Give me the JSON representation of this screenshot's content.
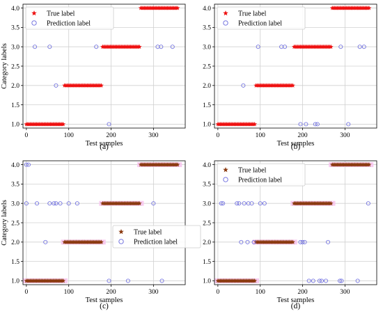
{
  "chart_data": [
    {
      "type": "scatter",
      "panel_label": "(a)",
      "xlabel": "Test samples",
      "ylabel": "Category labels",
      "xlim": [
        -8,
        375
      ],
      "ylim": [
        0.9,
        4.1
      ],
      "xticks": [
        0,
        100,
        200,
        300
      ],
      "yticks": [
        1.0,
        1.5,
        2.0,
        2.5,
        3.0,
        3.5,
        4.0
      ],
      "grid": true,
      "legend": {
        "position": "top-left",
        "entries": [
          "True label",
          "Prediction label"
        ]
      },
      "series": [
        {
          "name": "True label",
          "marker": "star",
          "color": "#ee1111",
          "segments": [
            {
              "x_start": 0,
              "x_end": 89,
              "y": 1.0
            },
            {
              "x_start": 90,
              "x_end": 179,
              "y": 2.0
            },
            {
              "x_start": 180,
              "x_end": 269,
              "y": 3.0
            },
            {
              "x_start": 270,
              "x_end": 359,
              "y": 4.0
            }
          ]
        },
        {
          "name": "Prediction label",
          "marker": "circle",
          "color": "#6666dd",
          "points": [
            [
              20,
              3.0
            ],
            [
              55,
              3.0
            ],
            [
              70,
              2.0
            ],
            [
              165,
              3.0
            ],
            [
              195,
              1.0
            ],
            [
              310,
              3.0
            ],
            [
              318,
              3.0
            ],
            [
              345,
              3.0
            ]
          ]
        }
      ]
    },
    {
      "type": "scatter",
      "panel_label": "(b)",
      "xlabel": "Test samples",
      "ylabel": "",
      "xlim": [
        -8,
        375
      ],
      "ylim": [
        0.9,
        4.1
      ],
      "xticks": [
        0,
        100,
        200,
        300
      ],
      "yticks": [
        1.0,
        1.5,
        2.0,
        2.5,
        3.0,
        3.5,
        4.0
      ],
      "grid": true,
      "legend": {
        "position": "top-left",
        "entries": [
          "True label",
          "Prediction label"
        ]
      },
      "series": [
        {
          "name": "True label",
          "marker": "star",
          "color": "#ee1111",
          "segments": [
            {
              "x_start": 0,
              "x_end": 89,
              "y": 1.0
            },
            {
              "x_start": 90,
              "x_end": 179,
              "y": 2.0
            },
            {
              "x_start": 180,
              "x_end": 269,
              "y": 3.0
            },
            {
              "x_start": 270,
              "x_end": 359,
              "y": 4.0
            }
          ]
        },
        {
          "name": "Prediction label",
          "marker": "circle",
          "color": "#6666dd",
          "points": [
            [
              60,
              2.0
            ],
            [
              95,
              3.0
            ],
            [
              150,
              3.0
            ],
            [
              158,
              3.0
            ],
            [
              195,
              1.0
            ],
            [
              208,
              1.0
            ],
            [
              230,
              1.0
            ],
            [
              235,
              1.0
            ],
            [
              290,
              3.0
            ],
            [
              308,
              1.0
            ],
            [
              335,
              3.0
            ],
            [
              345,
              3.0
            ]
          ]
        }
      ]
    },
    {
      "type": "scatter",
      "panel_label": "(c)",
      "xlabel": "Test samples",
      "ylabel": "Category labels",
      "xlim": [
        -8,
        375
      ],
      "ylim": [
        0.9,
        4.1
      ],
      "xticks": [
        0,
        100,
        200,
        300
      ],
      "yticks": [
        1.0,
        1.5,
        2.0,
        2.5,
        3.0,
        3.5,
        4.0
      ],
      "grid": true,
      "legend": {
        "position": "center-right",
        "entries": [
          "True label",
          "Prediction label"
        ]
      },
      "series": [
        {
          "name": "True label",
          "marker": "star",
          "color": "#8b3a10",
          "segments": [
            {
              "x_start": 0,
              "x_end": 89,
              "y": 1.0
            },
            {
              "x_start": 90,
              "x_end": 179,
              "y": 2.0
            },
            {
              "x_start": 180,
              "x_end": 269,
              "y": 3.0
            },
            {
              "x_start": 270,
              "x_end": 359,
              "y": 4.0
            }
          ]
        },
        {
          "name": "Prediction label",
          "marker": "circle",
          "color": "#6666dd",
          "points": [
            [
              0,
              4.0
            ],
            [
              5,
              4.0
            ],
            [
              0,
              3.0
            ],
            [
              25,
              3.0
            ],
            [
              45,
              2.0
            ],
            [
              55,
              3.0
            ],
            [
              65,
              3.0
            ],
            [
              70,
              3.0
            ],
            [
              80,
              3.0
            ],
            [
              100,
              3.0
            ],
            [
              120,
              3.0
            ],
            [
              195,
              1.0
            ],
            [
              240,
              1.0
            ],
            [
              300,
              3.0
            ],
            [
              320,
              1.0
            ]
          ]
        }
      ]
    },
    {
      "type": "scatter",
      "panel_label": "(d)",
      "xlabel": "Test samples",
      "ylabel": "",
      "xlim": [
        -8,
        375
      ],
      "ylim": [
        0.9,
        4.1
      ],
      "xticks": [
        0,
        100,
        200,
        300
      ],
      "yticks": [
        1.0,
        1.5,
        2.0,
        2.5,
        3.0,
        3.5,
        4.0
      ],
      "grid": true,
      "legend": {
        "position": "top-left",
        "entries": [
          "True label",
          "Prediction label"
        ]
      },
      "series": [
        {
          "name": "True label",
          "marker": "star",
          "color": "#8b3a10",
          "segments": [
            {
              "x_start": 0,
              "x_end": 89,
              "y": 1.0
            },
            {
              "x_start": 90,
              "x_end": 179,
              "y": 2.0
            },
            {
              "x_start": 180,
              "x_end": 269,
              "y": 3.0
            },
            {
              "x_start": 270,
              "x_end": 359,
              "y": 4.0
            }
          ]
        },
        {
          "name": "Prediction label",
          "marker": "circle",
          "color": "#6666dd",
          "points": [
            [
              8,
              3.0
            ],
            [
              12,
              3.0
            ],
            [
              45,
              3.0
            ],
            [
              50,
              3.0
            ],
            [
              55,
              2.0
            ],
            [
              62,
              3.0
            ],
            [
              70,
              2.0
            ],
            [
              72,
              3.0
            ],
            [
              80,
              3.0
            ],
            [
              85,
              2.0
            ],
            [
              100,
              3.0
            ],
            [
              110,
              3.0
            ],
            [
              195,
              2.0
            ],
            [
              200,
              2.0
            ],
            [
              205,
              2.0
            ],
            [
              215,
              1.0
            ],
            [
              225,
              1.0
            ],
            [
              240,
              1.0
            ],
            [
              245,
              1.0
            ],
            [
              255,
              1.0
            ],
            [
              260,
              2.0
            ],
            [
              288,
              1.0
            ],
            [
              292,
              1.0
            ],
            [
              330,
              1.0
            ],
            [
              355,
              3.0
            ]
          ]
        }
      ]
    }
  ]
}
